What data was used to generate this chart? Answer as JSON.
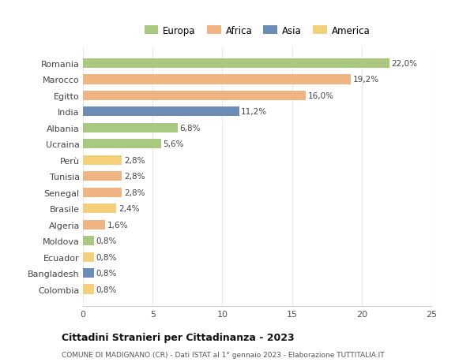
{
  "categories": [
    "Romania",
    "Marocco",
    "Egitto",
    "India",
    "Albania",
    "Ucraina",
    "Perù",
    "Tunisia",
    "Senegal",
    "Brasile",
    "Algeria",
    "Moldova",
    "Ecuador",
    "Bangladesh",
    "Colombia"
  ],
  "values": [
    22.0,
    19.2,
    16.0,
    11.2,
    6.8,
    5.6,
    2.8,
    2.8,
    2.8,
    2.4,
    1.6,
    0.8,
    0.8,
    0.8,
    0.8
  ],
  "labels": [
    "22,0%",
    "19,2%",
    "16,0%",
    "11,2%",
    "6,8%",
    "5,6%",
    "2,8%",
    "2,8%",
    "2,8%",
    "2,4%",
    "1,6%",
    "0,8%",
    "0,8%",
    "0,8%",
    "0,8%"
  ],
  "colors": [
    "#a8c97f",
    "#f0b482",
    "#f0b482",
    "#6b8db5",
    "#a8c97f",
    "#a8c97f",
    "#f5d07a",
    "#f0b482",
    "#f0b482",
    "#f5d07a",
    "#f0b482",
    "#a8c97f",
    "#f5d07a",
    "#6b8db5",
    "#f5d07a"
  ],
  "legend_labels": [
    "Europa",
    "Africa",
    "Asia",
    "America"
  ],
  "legend_colors": [
    "#a8c97f",
    "#f0b482",
    "#6b8db5",
    "#f5d07a"
  ],
  "title": "Cittadini Stranieri per Cittadinanza - 2023",
  "subtitle": "COMUNE DI MADIGNANO (CR) - Dati ISTAT al 1° gennaio 2023 - Elaborazione TUTTITALIA.IT",
  "xlim": [
    0,
    25
  ],
  "xticks": [
    0,
    5,
    10,
    15,
    20,
    25
  ],
  "background_color": "#ffffff",
  "grid_color": "#e8e8e8"
}
